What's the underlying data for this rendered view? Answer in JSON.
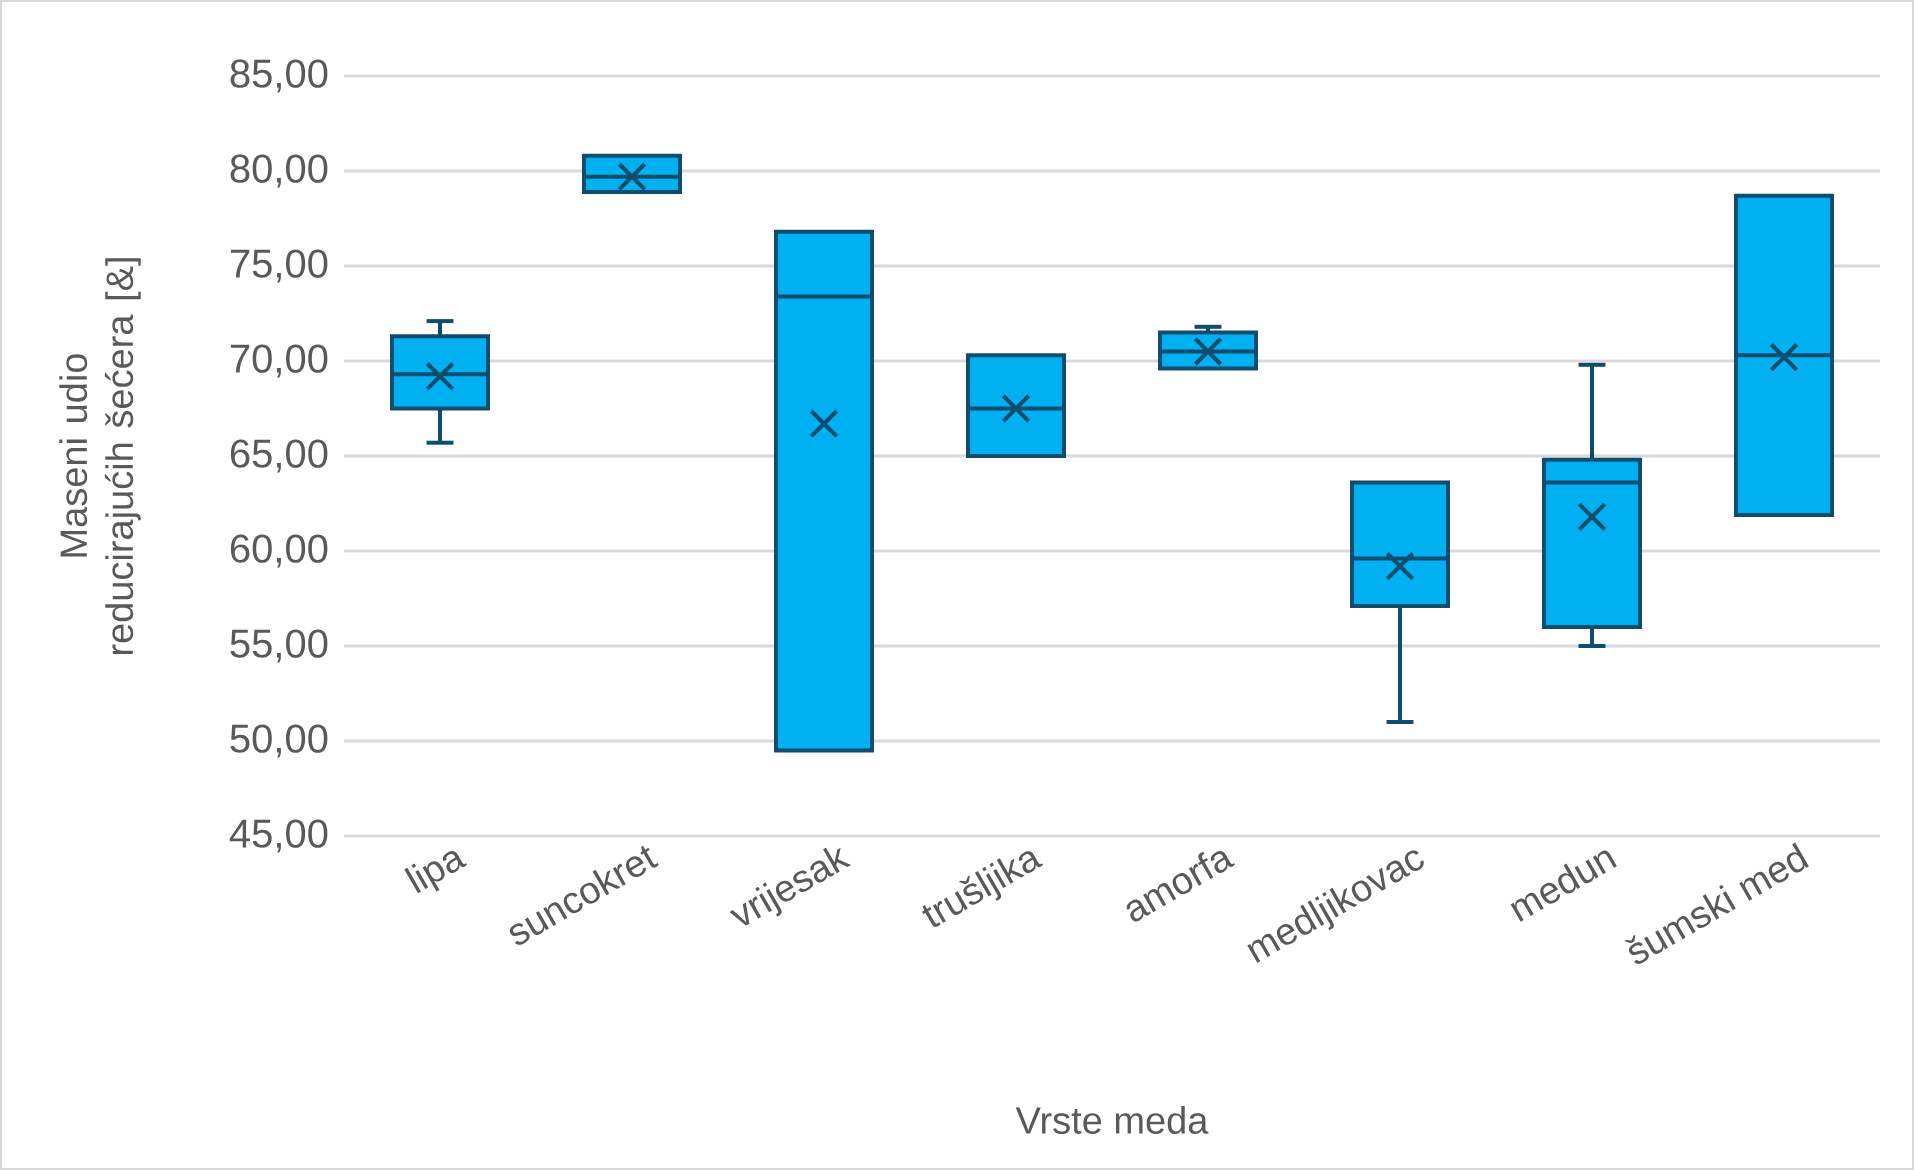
{
  "chart_data": {
    "type": "box",
    "xlabel": "Vrste meda",
    "ylabel": "Maseni udio reducirajućih šećera [&]",
    "categories": [
      "lipa",
      "suncokret",
      "vrijesak",
      "trušljika",
      "amorfa",
      "medljikovac",
      "medun",
      "šumski med"
    ],
    "ylim": [
      45,
      85
    ],
    "yticks": [
      {
        "value": 45,
        "label": "45,00"
      },
      {
        "value": 50,
        "label": "50,00"
      },
      {
        "value": 55,
        "label": "55,00"
      },
      {
        "value": 60,
        "label": "60,00"
      },
      {
        "value": 65,
        "label": "65,00"
      },
      {
        "value": 70,
        "label": "70,00"
      },
      {
        "value": 75,
        "label": "75,00"
      },
      {
        "value": 80,
        "label": "80,00"
      },
      {
        "value": 85,
        "label": "85,00"
      }
    ],
    "grid": "y",
    "marker": "cross",
    "series": [
      {
        "color": "#00b0f0",
        "boxes": [
          {
            "low": 65.7,
            "q1": 67.5,
            "median": 69.3,
            "q3": 71.3,
            "high": 72.1,
            "mean": 69.2
          },
          {
            "low": 78.9,
            "q1": 78.9,
            "median": 79.7,
            "q3": 80.8,
            "high": 80.8,
            "mean": 79.7
          },
          {
            "low": 49.5,
            "q1": 49.5,
            "median": 73.4,
            "q3": 76.8,
            "high": 76.8,
            "mean": 66.7
          },
          {
            "low": 65.0,
            "q1": 65.0,
            "median": 67.5,
            "q3": 70.3,
            "high": 70.3,
            "mean": 67.5
          },
          {
            "low": 69.6,
            "q1": 69.6,
            "median": 70.5,
            "q3": 71.5,
            "high": 71.8,
            "mean": 70.5
          },
          {
            "low": 51.0,
            "q1": 57.1,
            "median": 59.6,
            "q3": 63.6,
            "high": 63.6,
            "mean": 59.2
          },
          {
            "low": 55.0,
            "q1": 56.0,
            "median": 63.6,
            "q3": 64.8,
            "high": 69.8,
            "mean": 61.8
          },
          {
            "low": 61.9,
            "q1": 61.9,
            "median": 70.3,
            "q3": 78.7,
            "high": 78.7,
            "mean": 70.2
          }
        ]
      }
    ]
  }
}
